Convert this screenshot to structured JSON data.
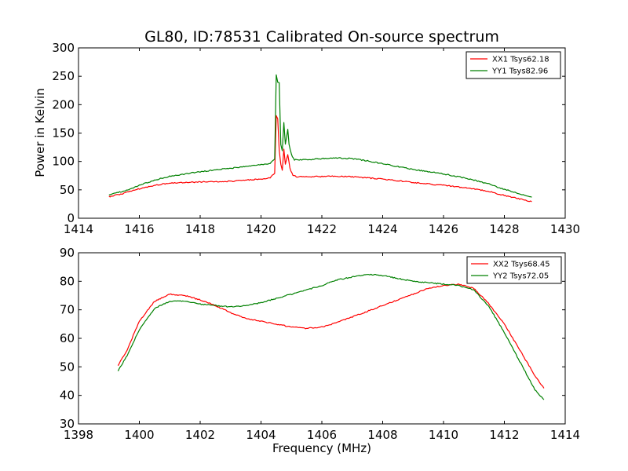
{
  "figure": {
    "title": "GL80, ID:78531 Calibrated On-source spectrum",
    "xlabel": "Frequency (MHz)",
    "ylabel": "Power in Kelvin"
  },
  "colors": {
    "red": "#ff0000",
    "green": "#008000"
  },
  "chart_data": [
    {
      "type": "line",
      "title": "GL80, ID:78531 Calibrated On-source spectrum",
      "xlabel": "",
      "ylabel": "Power in Kelvin",
      "xlim": [
        1414,
        1430
      ],
      "ylim": [
        0,
        300
      ],
      "xticks": [
        "1414",
        "1416",
        "1418",
        "1420",
        "1422",
        "1424",
        "1426",
        "1428",
        "1430"
      ],
      "yticks": [
        "0",
        "50",
        "100",
        "150",
        "200",
        "250",
        "300"
      ],
      "grid": false,
      "legend": "top-right",
      "series": [
        {
          "name": "XX1 Tsys62.18",
          "color": "#ff0000",
          "points": [
            [
              1415.0,
              38
            ],
            [
              1415.5,
              44
            ],
            [
              1416.0,
              52
            ],
            [
              1416.5,
              58
            ],
            [
              1417.0,
              62
            ],
            [
              1417.5,
              63
            ],
            [
              1418.0,
              64
            ],
            [
              1418.5,
              64.5
            ],
            [
              1419.0,
              65
            ],
            [
              1419.5,
              67
            ],
            [
              1420.0,
              69
            ],
            [
              1420.3,
              71
            ],
            [
              1420.45,
              80
            ],
            [
              1420.5,
              180
            ],
            [
              1420.55,
              175
            ],
            [
              1420.6,
              120
            ],
            [
              1420.65,
              95
            ],
            [
              1420.7,
              85
            ],
            [
              1420.75,
              122
            ],
            [
              1420.8,
              95
            ],
            [
              1420.88,
              112
            ],
            [
              1420.95,
              88
            ],
            [
              1421.05,
              75
            ],
            [
              1421.2,
              73
            ],
            [
              1422.0,
              73.5
            ],
            [
              1422.5,
              74
            ],
            [
              1423.0,
              73
            ],
            [
              1424.0,
              69
            ],
            [
              1425.0,
              63
            ],
            [
              1426.0,
              58
            ],
            [
              1426.5,
              55
            ],
            [
              1427.0,
              52
            ],
            [
              1427.5,
              47
            ],
            [
              1428.0,
              40
            ],
            [
              1428.5,
              34
            ],
            [
              1428.9,
              29
            ]
          ]
        },
        {
          "name": "YY1 Tsys82.96",
          "color": "#008000",
          "points": [
            [
              1415.0,
              41
            ],
            [
              1415.5,
              48
            ],
            [
              1416.0,
              58
            ],
            [
              1416.5,
              67
            ],
            [
              1417.0,
              74
            ],
            [
              1417.5,
              78
            ],
            [
              1418.0,
              82
            ],
            [
              1418.5,
              85
            ],
            [
              1419.0,
              88
            ],
            [
              1419.5,
              91
            ],
            [
              1420.0,
              94
            ],
            [
              1420.3,
              97
            ],
            [
              1420.45,
              105
            ],
            [
              1420.5,
              253
            ],
            [
              1420.55,
              240
            ],
            [
              1420.6,
              238
            ],
            [
              1420.65,
              130
            ],
            [
              1420.7,
              118
            ],
            [
              1420.75,
              168
            ],
            [
              1420.8,
              130
            ],
            [
              1420.88,
              157
            ],
            [
              1420.92,
              130
            ],
            [
              1421.0,
              112
            ],
            [
              1421.1,
              103
            ],
            [
              1421.5,
              103
            ],
            [
              1422.0,
              105
            ],
            [
              1422.5,
              106
            ],
            [
              1423.0,
              105
            ],
            [
              1423.5,
              101
            ],
            [
              1424.0,
              96
            ],
            [
              1424.5,
              91
            ],
            [
              1425.0,
              86
            ],
            [
              1425.5,
              82
            ],
            [
              1426.0,
              78
            ],
            [
              1426.5,
              73
            ],
            [
              1427.0,
              67
            ],
            [
              1427.5,
              60
            ],
            [
              1428.0,
              51
            ],
            [
              1428.5,
              43
            ],
            [
              1428.9,
              37
            ]
          ]
        }
      ]
    },
    {
      "type": "line",
      "title": "",
      "xlabel": "Frequency (MHz)",
      "ylabel": "",
      "xlim": [
        1398,
        1414
      ],
      "ylim": [
        30,
        90
      ],
      "xticks": [
        "1398",
        "1400",
        "1402",
        "1404",
        "1406",
        "1408",
        "1410",
        "1412",
        "1414"
      ],
      "yticks": [
        "30",
        "40",
        "50",
        "60",
        "70",
        "80",
        "90"
      ],
      "grid": false,
      "legend": "top-right",
      "series": [
        {
          "name": "XX2 Tsys68.45",
          "color": "#ff0000",
          "points": [
            [
              1399.3,
              50.5
            ],
            [
              1399.6,
              56
            ],
            [
              1400.0,
              66
            ],
            [
              1400.5,
              73
            ],
            [
              1401.0,
              75.5
            ],
            [
              1401.5,
              75
            ],
            [
              1402.0,
              73.5
            ],
            [
              1402.5,
              71.5
            ],
            [
              1403.0,
              69
            ],
            [
              1403.5,
              67
            ],
            [
              1404.0,
              66
            ],
            [
              1404.5,
              65
            ],
            [
              1405.0,
              64
            ],
            [
              1405.5,
              63.5
            ],
            [
              1406.0,
              64
            ],
            [
              1406.5,
              65.5
            ],
            [
              1407.0,
              67.5
            ],
            [
              1407.5,
              69.5
            ],
            [
              1408.0,
              71.5
            ],
            [
              1408.5,
              73.5
            ],
            [
              1409.0,
              75.5
            ],
            [
              1409.5,
              77.5
            ],
            [
              1410.0,
              78.5
            ],
            [
              1410.5,
              79
            ],
            [
              1411.0,
              77.5
            ],
            [
              1411.5,
              72
            ],
            [
              1412.0,
              65
            ],
            [
              1412.5,
              56
            ],
            [
              1413.0,
              47
            ],
            [
              1413.3,
              42.5
            ]
          ]
        },
        {
          "name": "YY2 Tsys72.05",
          "color": "#008000",
          "points": [
            [
              1399.3,
              48.5
            ],
            [
              1399.6,
              54
            ],
            [
              1400.0,
              63
            ],
            [
              1400.5,
              70.5
            ],
            [
              1401.0,
              73
            ],
            [
              1401.5,
              73
            ],
            [
              1402.0,
              72
            ],
            [
              1402.5,
              71.5
            ],
            [
              1403.0,
              71
            ],
            [
              1403.5,
              71.5
            ],
            [
              1404.0,
              72.5
            ],
            [
              1404.5,
              74
            ],
            [
              1405.0,
              75.5
            ],
            [
              1405.5,
              77
            ],
            [
              1406.0,
              78.5
            ],
            [
              1406.5,
              80.5
            ],
            [
              1407.0,
              81.5
            ],
            [
              1407.5,
              82.5
            ],
            [
              1408.0,
              82
            ],
            [
              1408.5,
              81
            ],
            [
              1409.0,
              80
            ],
            [
              1409.5,
              79.5
            ],
            [
              1410.0,
              79
            ],
            [
              1410.5,
              78.5
            ],
            [
              1411.0,
              77
            ],
            [
              1411.5,
              71
            ],
            [
              1412.0,
              62
            ],
            [
              1412.5,
              52
            ],
            [
              1413.0,
              42
            ],
            [
              1413.3,
              38.5
            ]
          ]
        }
      ]
    }
  ]
}
